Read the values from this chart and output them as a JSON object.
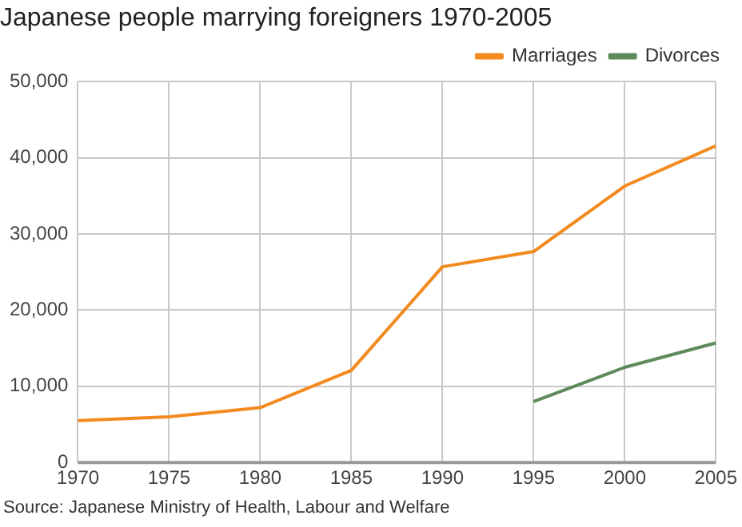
{
  "chart_data": {
    "type": "line",
    "title": "Japanese people marrying foreigners 1970-2005",
    "x": [
      1970,
      1975,
      1980,
      1985,
      1990,
      1995,
      2000,
      2005
    ],
    "series": [
      {
        "name": "Marriages",
        "color": "#f28a1e",
        "values": [
          5500,
          6000,
          7200,
          12100,
          25700,
          27700,
          36300,
          41600
        ]
      },
      {
        "name": "Divorces",
        "color": "#5e8a5c",
        "values": [
          null,
          null,
          null,
          null,
          null,
          8000,
          12500,
          15700
        ]
      }
    ],
    "xlim": [
      1970,
      2005
    ],
    "xticks": [
      1970,
      1975,
      1980,
      1985,
      1990,
      1995,
      2000,
      2005
    ],
    "ylim": [
      0,
      50000
    ],
    "yticks": [
      0,
      {
        "value": 10000,
        "label": "10,000"
      },
      {
        "value": 20000,
        "label": "20,000"
      },
      {
        "value": 30000,
        "label": "30,000"
      },
      {
        "value": 40000,
        "label": "40,000"
      },
      {
        "value": 50000,
        "label": "50,000"
      }
    ],
    "grid": true,
    "legend": "top right",
    "marker": "none",
    "line_style": "solid",
    "annotations": [
      "Source: Japanese Ministry of Health, Labour and Welfare"
    ]
  }
}
